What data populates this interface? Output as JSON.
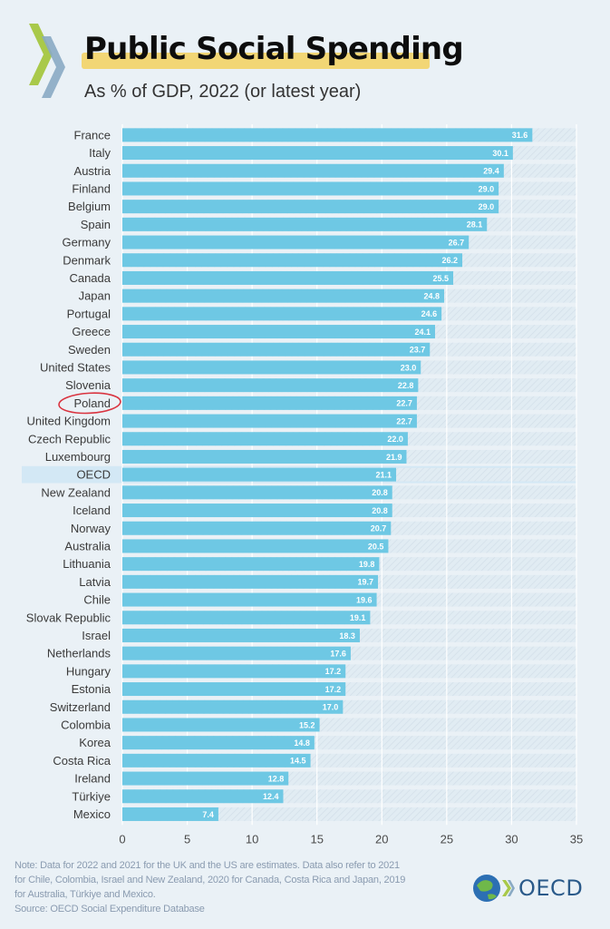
{
  "header": {
    "title": "Public Social Spending",
    "subtitle": "As % of GDP, 2022 (or latest year)"
  },
  "colors": {
    "bar": "#6ec8e4",
    "bar_highlight": "#6ec8e4",
    "highlight_band": "#d3e8f5",
    "track": "#e1ecf3",
    "title_highlight": "#f2d675",
    "annotation_circle": "#d9333f",
    "chevron_green": "#a9c94a",
    "chevron_blue": "#8aaac4"
  },
  "chart_data": {
    "type": "bar",
    "orientation": "horizontal",
    "categories": [
      "France",
      "Italy",
      "Austria",
      "Finland",
      "Belgium",
      "Spain",
      "Germany",
      "Denmark",
      "Canada",
      "Japan",
      "Portugal",
      "Greece",
      "Sweden",
      "United States",
      "Slovenia",
      "Poland",
      "United Kingdom",
      "Czech Republic",
      "Luxembourg",
      "OECD",
      "New Zealand",
      "Iceland",
      "Norway",
      "Australia",
      "Lithuania",
      "Latvia",
      "Chile",
      "Slovak Republic",
      "Israel",
      "Netherlands",
      "Hungary",
      "Estonia",
      "Switzerland",
      "Colombia",
      "Korea",
      "Costa Rica",
      "Ireland",
      "Türkiye",
      "Mexico"
    ],
    "values": [
      31.6,
      30.1,
      29.4,
      29.0,
      29.0,
      28.1,
      26.7,
      26.2,
      25.5,
      24.8,
      24.6,
      24.1,
      23.7,
      23.0,
      22.8,
      22.7,
      22.7,
      22.0,
      21.9,
      21.1,
      20.8,
      20.8,
      20.7,
      20.5,
      19.8,
      19.7,
      19.6,
      19.1,
      18.3,
      17.6,
      17.2,
      17.2,
      17.0,
      15.2,
      14.8,
      14.5,
      12.8,
      12.4,
      7.4
    ],
    "value_labels": [
      "31.6",
      "30.1",
      "29.4",
      "29.0",
      "29.0",
      "28.1",
      "26.7",
      "26.2",
      "25.5",
      "24.8",
      "24.6",
      "24.1",
      "23.7",
      "23.0",
      "22.8",
      "22.7",
      "22.7",
      "22.0",
      "21.9",
      "21.1",
      "20.8",
      "20.8",
      "20.7",
      "20.5",
      "19.8",
      "19.7",
      "19.6",
      "19.1",
      "18.3",
      "17.6",
      "17.2",
      "17.2",
      "17.0",
      "15.2",
      "14.8",
      "14.5",
      "12.8",
      "12.4",
      "7.4"
    ],
    "highlighted_category": "OECD",
    "circled_category": "Poland",
    "xlim": [
      0,
      35
    ],
    "xticks": [
      0,
      5,
      10,
      15,
      20,
      25,
      30,
      35
    ],
    "xtick_labels": [
      "0",
      "5",
      "10",
      "15",
      "20",
      "25",
      "30",
      "35"
    ],
    "title": "Public Social Spending",
    "subtitle": "As % of GDP, 2022 (or latest year)",
    "grid": true
  },
  "footer": {
    "note_lines": [
      "Note: Data for 2022 and 2021 for the UK and the US are estimates. Data also refer to 2021",
      "for Chile, Colombia, Israel and New Zealand, 2020 for Canada, Costa Rica and Japan, 2019",
      "for Australia, Türkiye and Mexico.",
      "Source:  OECD Social Expenditure Database"
    ],
    "logo_text": "OECD"
  }
}
